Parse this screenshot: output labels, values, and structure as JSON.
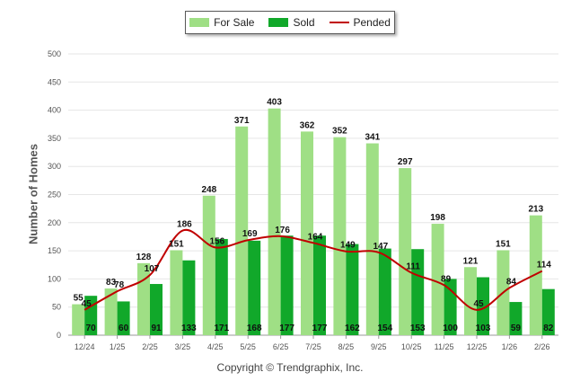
{
  "chart_data": {
    "type": "bar",
    "title": "",
    "xlabel": "",
    "ylabel": "Number of Homes",
    "ylim": [
      0,
      500
    ],
    "yticks": [
      0,
      50,
      100,
      150,
      200,
      250,
      300,
      350,
      400,
      450,
      500
    ],
    "grid": true,
    "legend_position": "top-center",
    "categories": [
      "12/24",
      "1/25",
      "2/25",
      "3/25",
      "4/25",
      "5/25",
      "6/25",
      "7/25",
      "8/25",
      "9/25",
      "10/25",
      "11/25",
      "12/25",
      "1/26",
      "2/26"
    ],
    "series": [
      {
        "name": "For Sale",
        "kind": "bar",
        "color": "#9fdf85",
        "values": [
          55,
          83,
          128,
          151,
          248,
          371,
          403,
          362,
          352,
          341,
          297,
          198,
          121,
          151,
          213
        ]
      },
      {
        "name": "Sold",
        "kind": "bar",
        "color": "#11a82a",
        "values": [
          70,
          60,
          91,
          133,
          171,
          168,
          177,
          177,
          162,
          154,
          153,
          100,
          103,
          59,
          82
        ]
      },
      {
        "name": "Pended",
        "kind": "line",
        "color": "#c00000",
        "values": [
          45,
          78,
          107,
          186,
          156,
          169,
          176,
          164,
          149,
          147,
          111,
          89,
          45,
          84,
          114
        ]
      }
    ]
  },
  "footer": {
    "copyright": "Copyright © Trendgraphix, Inc."
  }
}
